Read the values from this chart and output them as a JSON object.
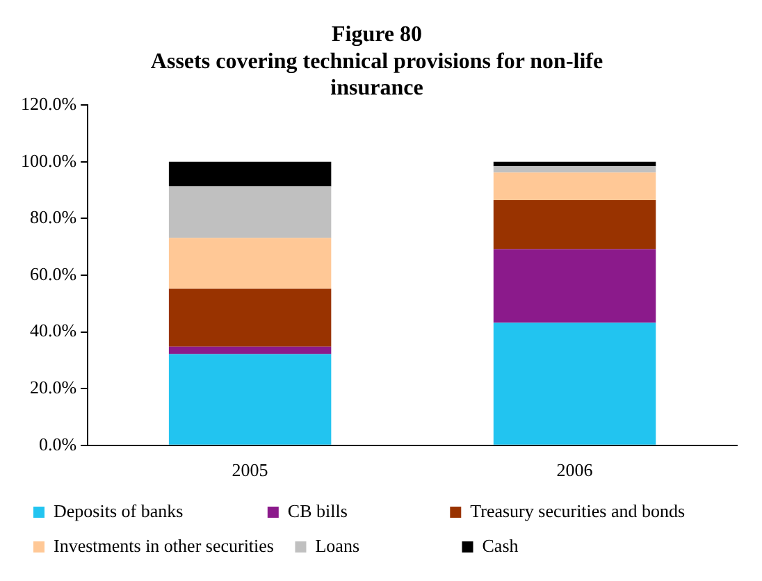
{
  "chart_data": {
    "type": "bar",
    "title": [
      "Figure 80",
      "Assets covering technical provisions for non-life",
      "insurance"
    ],
    "categories": [
      "2005",
      "2006"
    ],
    "stacked": true,
    "series": [
      {
        "name": "Deposits of banks",
        "color": "#22c4f0",
        "values": [
          32.2,
          43.2
        ]
      },
      {
        "name": "CB bills",
        "color": "#8b1a8b",
        "values": [
          2.6,
          26.0
        ]
      },
      {
        "name": "Treasury securities and bonds",
        "color": "#993300",
        "values": [
          20.4,
          17.3
        ]
      },
      {
        "name": "Investments in other securities",
        "color": "#ffc896",
        "values": [
          18.0,
          9.7
        ]
      },
      {
        "name": "Loans",
        "color": "#c0c0c0",
        "values": [
          18.1,
          2.2
        ]
      },
      {
        "name": "Cash",
        "color": "#000000",
        "values": [
          8.7,
          1.6
        ]
      }
    ],
    "ylim": [
      0,
      120
    ],
    "yticks": [
      {
        "value": 0,
        "label": "0.0%"
      },
      {
        "value": 20,
        "label": "20.0%"
      },
      {
        "value": 40,
        "label": "40.0%"
      },
      {
        "value": 60,
        "label": "60.0%"
      },
      {
        "value": 80,
        "label": "80.0%"
      },
      {
        "value": 100,
        "label": "100.0%"
      },
      {
        "value": 120,
        "label": "120.0%"
      }
    ],
    "grid": false,
    "legend": "bottom"
  }
}
